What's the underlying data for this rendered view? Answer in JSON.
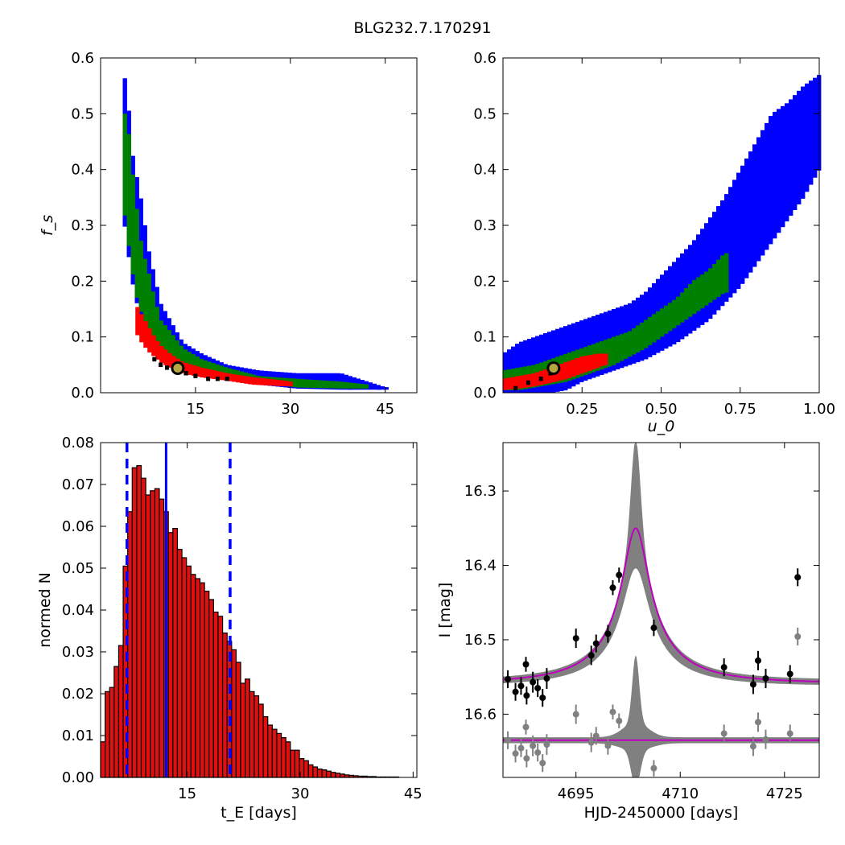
{
  "figure": {
    "title": "BLG232.7.170291"
  },
  "colors": {
    "sigma3": "#0000ff",
    "sigma2": "#008000",
    "sigma1": "#ff0000",
    "best": "#000000",
    "marker_edge": "#000000",
    "marker_face": "#b5a642",
    "hist_bar": "#e01010",
    "hist_line": "#0000ff",
    "model": "#bf00bf",
    "band": "#808080",
    "data_black": "#000000",
    "data_grey": "#808080"
  },
  "chart_data": [
    {
      "id": "tE_fs",
      "type": "heatmap",
      "title": "",
      "xlabel": "",
      "ylabel": "f_s",
      "xlim": [
        0,
        50
      ],
      "ylim": [
        0,
        0.6
      ],
      "xticks": [
        "15",
        "30",
        "45"
      ],
      "xtick_values": [
        15,
        30,
        45
      ],
      "yticks": [
        "0.0",
        "0.1",
        "0.2",
        "0.3",
        "0.4",
        "0.5",
        "0.6"
      ],
      "ytick_values": [
        0,
        0.1,
        0.2,
        0.3,
        0.4,
        0.5,
        0.6
      ],
      "levels": [
        {
          "name": "3 sigma",
          "x": [
            3.5,
            4.0,
            4.5,
            5.0,
            5.5,
            6.5,
            7.5,
            8.5,
            9.5,
            11.0,
            13.0,
            16.0,
            20.0,
            25.0,
            31.0,
            38.0,
            45.0
          ],
          "ylo": [
            0.33,
            0.28,
            0.24,
            0.2,
            0.17,
            0.13,
            0.1,
            0.085,
            0.07,
            0.06,
            0.045,
            0.035,
            0.025,
            0.015,
            0.008,
            0.006,
            0.006
          ],
          "yhi": [
            0.57,
            0.56,
            0.5,
            0.43,
            0.4,
            0.34,
            0.26,
            0.21,
            0.16,
            0.13,
            0.09,
            0.07,
            0.05,
            0.04,
            0.035,
            0.035,
            0.01
          ]
        },
        {
          "name": "2 sigma",
          "x": [
            3.5,
            4.0,
            4.5,
            5.0,
            5.5,
            6.5,
            7.5,
            8.5,
            9.5,
            11.0,
            13.0,
            16.0,
            20.0,
            25.0,
            31.0,
            38.0,
            42.0
          ],
          "ylo": [
            0.35,
            0.3,
            0.26,
            0.22,
            0.18,
            0.14,
            0.11,
            0.09,
            0.075,
            0.065,
            0.05,
            0.038,
            0.028,
            0.018,
            0.01,
            0.008,
            0.008
          ],
          "yhi": [
            0.5,
            0.5,
            0.46,
            0.4,
            0.35,
            0.26,
            0.22,
            0.17,
            0.13,
            0.11,
            0.08,
            0.06,
            0.045,
            0.03,
            0.025,
            0.02,
            0.015
          ]
        },
        {
          "name": "1 sigma",
          "x": [
            5.5,
            6.0,
            6.5,
            7.5,
            8.5,
            9.5,
            11.0,
            13.0,
            16.0,
            20.0,
            24.0,
            29.0,
            30.0
          ],
          "ylo": [
            0.11,
            0.1,
            0.09,
            0.075,
            0.065,
            0.055,
            0.045,
            0.035,
            0.028,
            0.022,
            0.015,
            0.012,
            0.012
          ],
          "yhi": [
            0.16,
            0.15,
            0.14,
            0.12,
            0.1,
            0.085,
            0.07,
            0.055,
            0.045,
            0.035,
            0.028,
            0.022,
            0.02
          ]
        }
      ],
      "best_cells": [
        [
          8.5,
          0.06
        ],
        [
          9.5,
          0.05
        ],
        [
          10.5,
          0.045
        ],
        [
          12.0,
          0.04
        ],
        [
          13.5,
          0.035
        ],
        [
          15.0,
          0.03
        ],
        [
          17.0,
          0.025
        ],
        [
          18.5,
          0.025
        ],
        [
          20.0,
          0.025
        ]
      ],
      "best_fit": {
        "x": 12.2,
        "y": 0.044
      }
    },
    {
      "id": "u0_fs",
      "type": "heatmap",
      "title": "",
      "xlabel": "u_0",
      "ylabel": "",
      "xlim": [
        0,
        1
      ],
      "ylim": [
        0,
        0.6
      ],
      "xticks": [
        "0.25",
        "0.50",
        "0.75",
        "1.00"
      ],
      "xtick_values": [
        0.25,
        0.5,
        0.75,
        1.0
      ],
      "yticks": [
        "0.0",
        "0.1",
        "0.2",
        "0.3",
        "0.4",
        "0.5",
        "0.6"
      ],
      "ytick_values": [
        0,
        0.1,
        0.2,
        0.3,
        0.4,
        0.5,
        0.6
      ],
      "levels": [
        {
          "name": "3 sigma",
          "x": [
            0.0,
            0.05,
            0.1,
            0.15,
            0.2,
            0.25,
            0.3,
            0.35,
            0.4,
            0.45,
            0.5,
            0.55,
            0.6,
            0.65,
            0.7,
            0.75,
            0.8,
            0.85,
            0.9,
            0.95,
            1.0
          ],
          "ylo": [
            0.0,
            0.0,
            0.0,
            0.0,
            0.005,
            0.02,
            0.03,
            0.04,
            0.05,
            0.06,
            0.075,
            0.09,
            0.11,
            0.13,
            0.16,
            0.19,
            0.23,
            0.27,
            0.31,
            0.35,
            0.4
          ],
          "yhi": [
            0.07,
            0.09,
            0.1,
            0.11,
            0.12,
            0.13,
            0.14,
            0.15,
            0.16,
            0.18,
            0.21,
            0.24,
            0.27,
            0.31,
            0.35,
            0.4,
            0.45,
            0.5,
            0.52,
            0.55,
            0.57
          ]
        },
        {
          "name": "2 sigma",
          "x": [
            0.0,
            0.05,
            0.1,
            0.15,
            0.2,
            0.25,
            0.3,
            0.35,
            0.4,
            0.45,
            0.5,
            0.55,
            0.6,
            0.65,
            0.7
          ],
          "ylo": [
            0.005,
            0.005,
            0.01,
            0.015,
            0.02,
            0.03,
            0.04,
            0.05,
            0.065,
            0.08,
            0.1,
            0.12,
            0.14,
            0.16,
            0.18
          ],
          "yhi": [
            0.04,
            0.045,
            0.05,
            0.06,
            0.07,
            0.08,
            0.09,
            0.1,
            0.11,
            0.13,
            0.15,
            0.17,
            0.2,
            0.22,
            0.25
          ]
        },
        {
          "name": "1 sigma",
          "x": [
            0.0,
            0.05,
            0.1,
            0.15,
            0.2,
            0.25,
            0.3,
            0.32
          ],
          "ylo": [
            0.005,
            0.008,
            0.012,
            0.018,
            0.025,
            0.035,
            0.045,
            0.05
          ],
          "yhi": [
            0.025,
            0.03,
            0.035,
            0.045,
            0.055,
            0.065,
            0.07,
            0.07
          ]
        }
      ],
      "best_cells": [
        [
          0.04,
          0.008
        ],
        [
          0.08,
          0.018
        ],
        [
          0.12,
          0.025
        ],
        [
          0.15,
          0.035
        ]
      ],
      "best_fit": {
        "x": 0.16,
        "y": 0.044
      }
    },
    {
      "id": "tE_hist",
      "type": "bar",
      "title": "",
      "xlabel": "t_E [days]",
      "ylabel": "normed N",
      "xlim": [
        3.5,
        45.5
      ],
      "ylim": [
        0,
        0.08
      ],
      "xticks": [
        "15",
        "30",
        "45"
      ],
      "xtick_values": [
        15,
        30,
        45
      ],
      "yticks": [
        "0.00",
        "0.01",
        "0.02",
        "0.03",
        "0.04",
        "0.05",
        "0.06",
        "0.07",
        "0.08"
      ],
      "ytick_values": [
        0,
        0.01,
        0.02,
        0.03,
        0.04,
        0.05,
        0.06,
        0.07,
        0.08
      ],
      "bin_start": 3.5,
      "bin_width": 0.6,
      "values": [
        0.0085,
        0.0205,
        0.0215,
        0.0265,
        0.0315,
        0.0505,
        0.0635,
        0.074,
        0.0745,
        0.0715,
        0.0675,
        0.0685,
        0.069,
        0.0665,
        0.0635,
        0.0585,
        0.0595,
        0.0545,
        0.0525,
        0.0505,
        0.0485,
        0.0475,
        0.0465,
        0.0445,
        0.0425,
        0.0395,
        0.0385,
        0.0345,
        0.0325,
        0.0305,
        0.0275,
        0.0225,
        0.0235,
        0.0205,
        0.0195,
        0.0175,
        0.0145,
        0.0125,
        0.0115,
        0.0105,
        0.0095,
        0.0085,
        0.0065,
        0.0065,
        0.0045,
        0.004,
        0.003,
        0.0025,
        0.002,
        0.0018,
        0.0015,
        0.0012,
        0.001,
        0.0008,
        0.0006,
        0.0005,
        0.0004,
        0.0003,
        0.0003,
        0.0002,
        0.0002,
        0.0001,
        0.0001,
        0.0001,
        0.0001,
        0.0001,
        0.0,
        0.0,
        0.0,
        0.0
      ],
      "median": 12.2,
      "lower": 7.0,
      "upper": 20.7
    },
    {
      "id": "lightcurve",
      "type": "scatter",
      "title": "",
      "xlabel": "HJD-2450000 [days]",
      "ylabel": "I [mag]",
      "xlim": [
        4684.5,
        4730
      ],
      "ylim": [
        16.685,
        16.235
      ],
      "y_inverted": true,
      "xticks": [
        "4695",
        "4710",
        "4725"
      ],
      "xtick_values": [
        4695,
        4710,
        4725
      ],
      "yticks": [
        "16.3",
        "16.4",
        "16.5",
        "16.6"
      ],
      "ytick_values": [
        16.3,
        16.4,
        16.5,
        16.6
      ],
      "model": {
        "baseline": 16.558,
        "peak_time": 4703.6,
        "peak_mag": 16.35,
        "tE": 12.2,
        "u0": 0.16
      },
      "band_peak": 16.235,
      "band_low_peak": 16.4,
      "residual_baseline": 16.635,
      "data": [
        {
          "t": 4685.2,
          "mag": 16.553,
          "err": 0.012
        },
        {
          "t": 4686.3,
          "mag": 16.57,
          "err": 0.012
        },
        {
          "t": 4687.1,
          "mag": 16.562,
          "err": 0.012
        },
        {
          "t": 4687.8,
          "mag": 16.533,
          "err": 0.01
        },
        {
          "t": 4687.9,
          "mag": 16.575,
          "err": 0.012
        },
        {
          "t": 4688.8,
          "mag": 16.557,
          "err": 0.014
        },
        {
          "t": 4689.5,
          "mag": 16.565,
          "err": 0.012
        },
        {
          "t": 4690.2,
          "mag": 16.578,
          "err": 0.012
        },
        {
          "t": 4690.8,
          "mag": 16.552,
          "err": 0.014
        },
        {
          "t": 4695.0,
          "mag": 16.498,
          "err": 0.013
        },
        {
          "t": 4697.2,
          "mag": 16.521,
          "err": 0.013
        },
        {
          "t": 4697.9,
          "mag": 16.505,
          "err": 0.012
        },
        {
          "t": 4699.6,
          "mag": 16.492,
          "err": 0.012
        },
        {
          "t": 4700.3,
          "mag": 16.43,
          "err": 0.01
        },
        {
          "t": 4701.2,
          "mag": 16.413,
          "err": 0.01
        },
        {
          "t": 4706.2,
          "mag": 16.484,
          "err": 0.011
        },
        {
          "t": 4716.3,
          "mag": 16.537,
          "err": 0.012
        },
        {
          "t": 4720.5,
          "mag": 16.56,
          "err": 0.013
        },
        {
          "t": 4721.2,
          "mag": 16.528,
          "err": 0.013
        },
        {
          "t": 4722.3,
          "mag": 16.552,
          "err": 0.013
        },
        {
          "t": 4725.8,
          "mag": 16.546,
          "err": 0.012
        },
        {
          "t": 4726.9,
          "mag": 16.416,
          "err": 0.012
        }
      ]
    }
  ]
}
